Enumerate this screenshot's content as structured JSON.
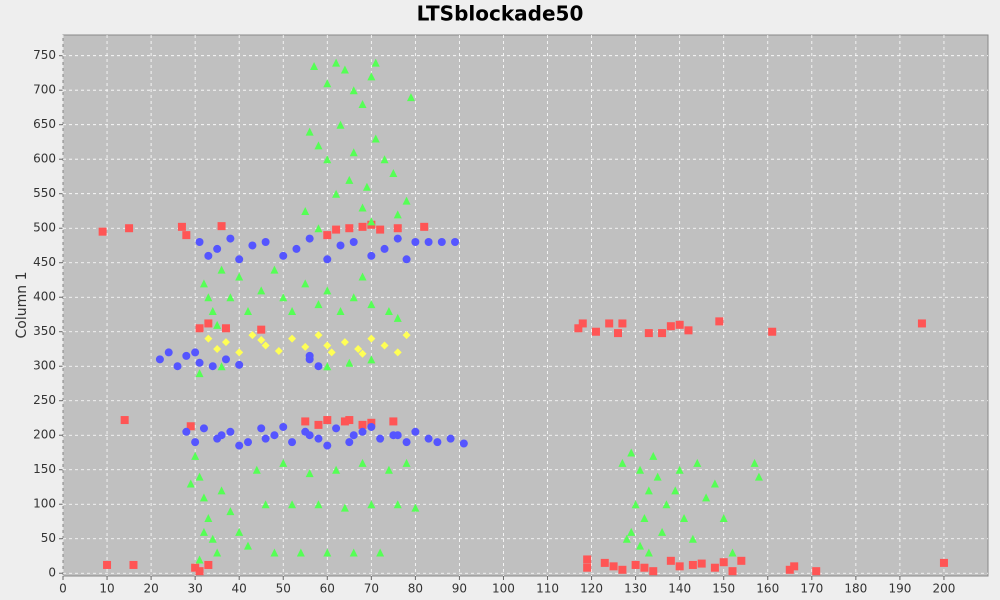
{
  "chart_data": {
    "type": "scatter",
    "title": "LTSblockade50",
    "y_label": "Column 1",
    "xlim": [
      0,
      210
    ],
    "ylim": [
      -4,
      780
    ],
    "xticks": [
      0,
      10,
      20,
      30,
      40,
      50,
      60,
      70,
      80,
      90,
      100,
      110,
      120,
      130,
      140,
      150,
      160,
      170,
      180,
      190,
      200
    ],
    "yticks": [
      0,
      50,
      100,
      150,
      200,
      250,
      300,
      350,
      400,
      450,
      500,
      550,
      600,
      650,
      700,
      750
    ],
    "grid": true,
    "series": [
      {
        "color": "#ff5555",
        "marker": "square",
        "x": [
          9,
          15,
          27,
          28,
          36,
          33,
          31,
          37,
          45,
          14,
          10,
          16,
          29,
          30,
          31,
          33,
          55,
          60,
          65,
          70,
          75,
          58,
          62,
          65,
          68,
          72,
          76,
          82,
          117,
          118,
          121,
          124,
          126,
          127,
          133,
          136,
          138,
          140,
          142,
          149,
          161,
          195,
          119,
          119,
          123,
          125,
          127,
          130,
          132,
          134,
          138,
          140,
          143,
          145,
          148,
          150,
          152,
          154,
          165,
          166,
          171,
          200,
          60,
          70,
          64,
          68
        ],
        "values": [
          495,
          500,
          502,
          490,
          503,
          362,
          355,
          355,
          353,
          222,
          12,
          12,
          213,
          8,
          3,
          12,
          220,
          222,
          222,
          218,
          220,
          215,
          498,
          500,
          502,
          498,
          500,
          502,
          355,
          362,
          350,
          362,
          348,
          362,
          348,
          348,
          358,
          360,
          352,
          365,
          350,
          362,
          20,
          8,
          15,
          10,
          5,
          12,
          8,
          3,
          18,
          10,
          12,
          14,
          8,
          16,
          3,
          18,
          5,
          10,
          3,
          15,
          490,
          505,
          220,
          215
        ]
      },
      {
        "color": "#55ff55",
        "marker": "triangle",
        "x": [
          57,
          60,
          62,
          64,
          66,
          68,
          71,
          70,
          79,
          56,
          58,
          60,
          63,
          66,
          69,
          71,
          73,
          75,
          76,
          78,
          55,
          58,
          62,
          65,
          68,
          70,
          32,
          34,
          36,
          38,
          40,
          42,
          45,
          48,
          50,
          52,
          55,
          58,
          60,
          63,
          66,
          68,
          70,
          74,
          76,
          33,
          35,
          31,
          36,
          60,
          65,
          70,
          30,
          31,
          32,
          33,
          34,
          35,
          36,
          38,
          40,
          42,
          44,
          46,
          48,
          50,
          52,
          54,
          56,
          58,
          60,
          62,
          64,
          66,
          68,
          70,
          72,
          74,
          76,
          78,
          80,
          31,
          32,
          29,
          127,
          129,
          131,
          133,
          130,
          132,
          129,
          131,
          133,
          135,
          137,
          139,
          141,
          143,
          140,
          144,
          146,
          148,
          150,
          152,
          157,
          158,
          134,
          136,
          128
        ],
        "values": [
          735,
          710,
          740,
          730,
          700,
          680,
          740,
          720,
          690,
          640,
          620,
          600,
          650,
          610,
          560,
          630,
          600,
          580,
          520,
          540,
          525,
          500,
          550,
          570,
          530,
          510,
          420,
          380,
          440,
          400,
          430,
          380,
          410,
          440,
          400,
          380,
          420,
          390,
          410,
          380,
          400,
          430,
          390,
          380,
          370,
          400,
          360,
          290,
          300,
          300,
          305,
          310,
          170,
          140,
          110,
          80,
          50,
          30,
          120,
          90,
          60,
          40,
          150,
          100,
          30,
          160,
          100,
          30,
          145,
          100,
          30,
          150,
          95,
          30,
          160,
          100,
          30,
          150,
          100,
          160,
          95,
          20,
          60,
          130,
          160,
          175,
          150,
          120,
          100,
          80,
          60,
          40,
          30,
          140,
          100,
          120,
          80,
          50,
          150,
          160,
          110,
          130,
          80,
          30,
          160,
          140,
          170,
          60,
          50
        ]
      },
      {
        "color": "#5555ff",
        "marker": "circle",
        "x": [
          28,
          30,
          32,
          35,
          38,
          42,
          45,
          48,
          52,
          55,
          58,
          62,
          65,
          68,
          72,
          75,
          78,
          80,
          83,
          85,
          88,
          91,
          40,
          50,
          60,
          70,
          36,
          46,
          56,
          66,
          76,
          31,
          33,
          35,
          38,
          40,
          43,
          46,
          50,
          53,
          56,
          60,
          63,
          66,
          70,
          73,
          76,
          80,
          83,
          86,
          89,
          78,
          22,
          24,
          26,
          28,
          31,
          34,
          37,
          40,
          56,
          58,
          56,
          30
        ],
        "values": [
          205,
          190,
          210,
          195,
          205,
          190,
          210,
          200,
          190,
          205,
          195,
          210,
          190,
          205,
          195,
          200,
          190,
          205,
          195,
          190,
          195,
          188,
          185,
          212,
          185,
          212,
          200,
          195,
          200,
          200,
          200,
          480,
          460,
          470,
          485,
          455,
          475,
          480,
          460,
          470,
          485,
          455,
          475,
          480,
          460,
          470,
          485,
          480,
          480,
          480,
          480,
          455,
          310,
          320,
          300,
          315,
          305,
          300,
          310,
          302,
          310,
          300,
          315,
          320
        ]
      },
      {
        "color": "#ffff55",
        "marker": "diamond",
        "x": [
          33,
          35,
          37,
          40,
          43,
          46,
          49,
          52,
          55,
          58,
          61,
          64,
          67,
          70,
          73,
          76,
          78,
          45,
          60,
          68
        ],
        "values": [
          340,
          325,
          335,
          320,
          345,
          330,
          322,
          340,
          328,
          345,
          320,
          335,
          325,
          340,
          330,
          320,
          345,
          338,
          330,
          318
        ]
      }
    ]
  }
}
